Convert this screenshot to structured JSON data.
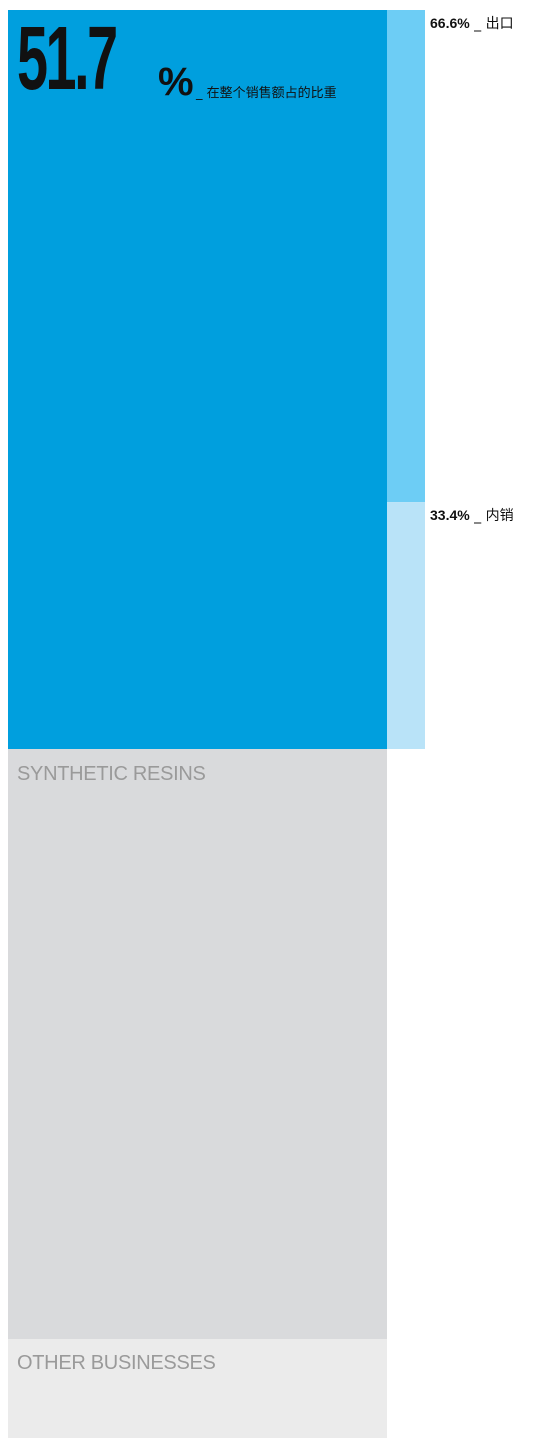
{
  "chart_data": {
    "type": "stacked-block",
    "main_segments": [
      {
        "name": "",
        "color": "#009fde"
      },
      {
        "name": "SYNTHETIC RESINS",
        "color": "#d9dadc"
      },
      {
        "name": "OTHER BUSINESSES",
        "color": "#ebebeb"
      }
    ],
    "headline": {
      "value": "51.7",
      "unit": "%",
      "caption": "_ 在整个销售额占的比重"
    },
    "breakdown": [
      {
        "value": 66.6,
        "label_pct": "66.6%",
        "label_text": "_ 出口",
        "color": "#6dcdf5"
      },
      {
        "value": 33.4,
        "label_pct": "33.4%",
        "label_text": "_ 内销",
        "color": "#b9e3f8"
      }
    ]
  }
}
